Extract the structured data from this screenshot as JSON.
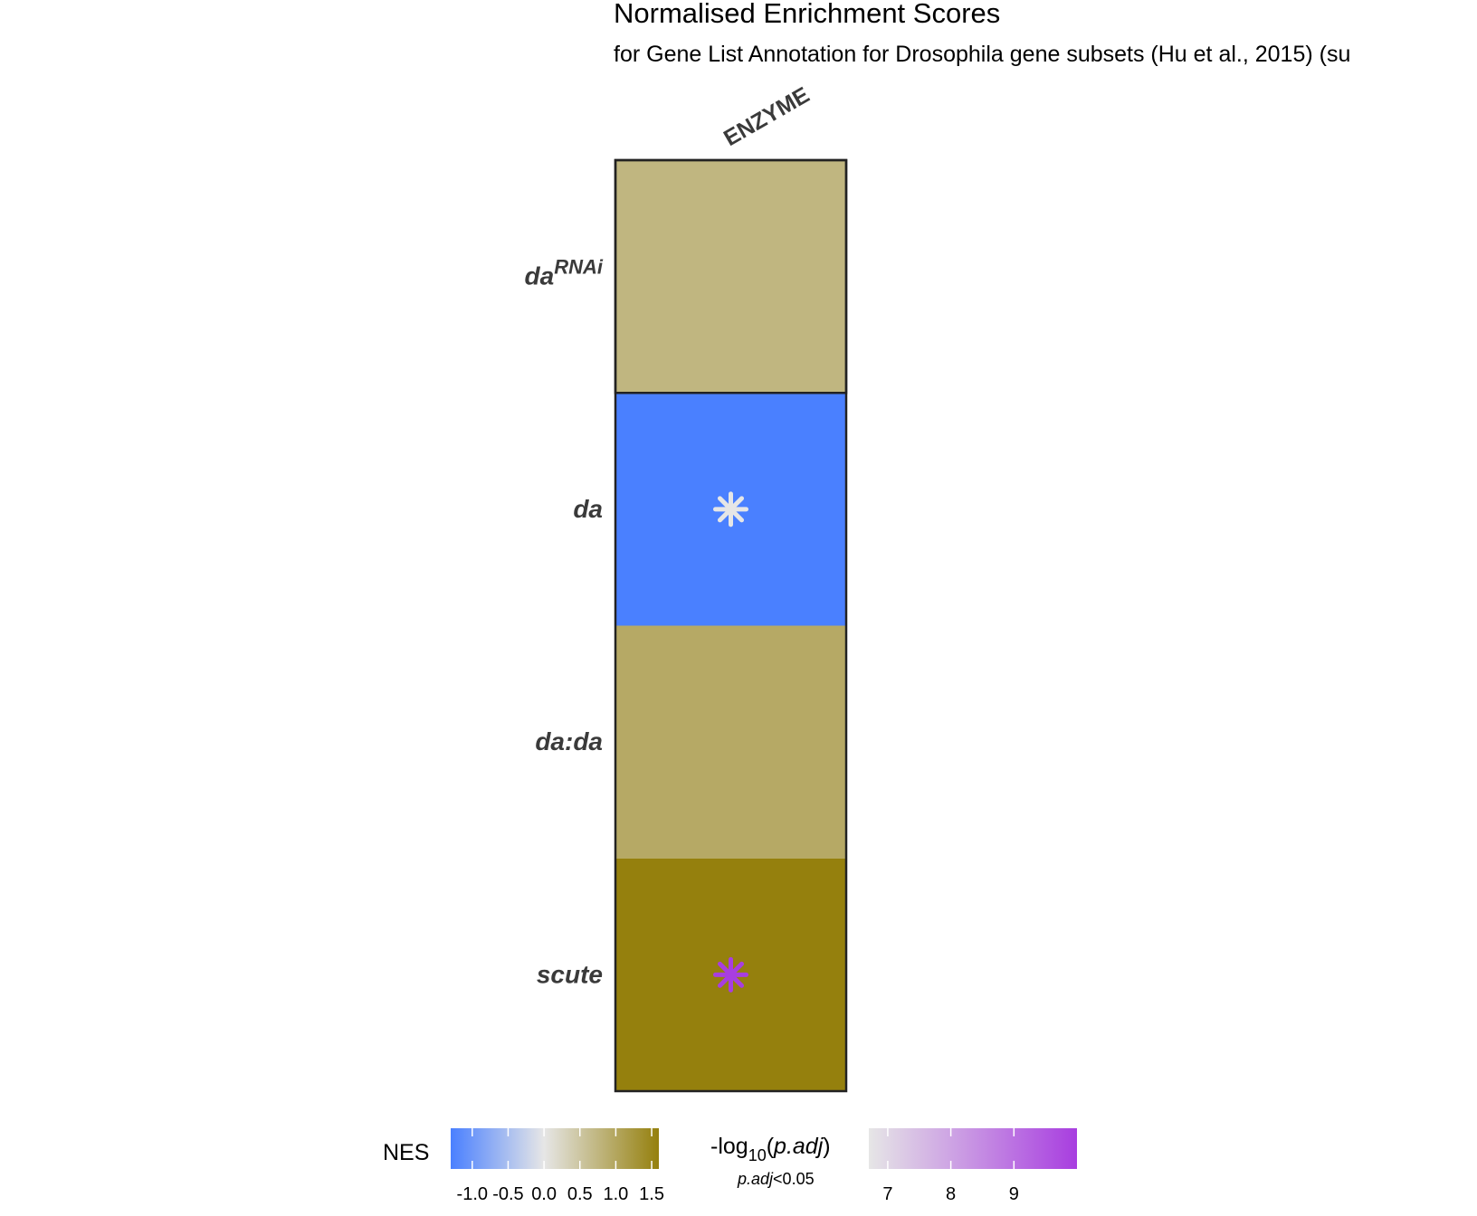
{
  "chart_data": {
    "type": "heatmap",
    "title": "Normalised Enrichment Scores",
    "subtitle": "for Gene List Annotation for Drosophila gene subsets (Hu et al., 2015) (su",
    "columns": [
      "ENZYME"
    ],
    "rows": [
      {
        "label_main": "da",
        "label_sup": "RNAi",
        "label_suffix": ""
      },
      {
        "label_main": "da",
        "label_sup": "",
        "label_suffix": ""
      },
      {
        "label_main": "da:da",
        "label_sup": "",
        "label_suffix": ""
      },
      {
        "label_main": "scute",
        "label_sup": "",
        "label_suffix": ""
      }
    ],
    "cells": [
      {
        "row": 0,
        "col": 0,
        "nes": 0.75,
        "significant": false,
        "neg_log10_padj": null
      },
      {
        "row": 1,
        "col": 0,
        "nes": -1.3,
        "significant": true,
        "neg_log10_padj": 6.7
      },
      {
        "row": 2,
        "col": 0,
        "nes": 0.95,
        "significant": false,
        "neg_log10_padj": null
      },
      {
        "row": 3,
        "col": 0,
        "nes": 1.6,
        "significant": true,
        "neg_log10_padj": 10.0
      }
    ],
    "nes_legend": {
      "title": "NES",
      "range": [
        -1.3,
        1.6
      ],
      "ticks": [
        -1.0,
        -0.5,
        0.0,
        0.5,
        1.0,
        1.5
      ],
      "tick_labels": [
        "-1.0",
        "-0.5",
        "0.0",
        "0.5",
        "1.0",
        "1.5"
      ],
      "colors": {
        "low": "#4a80ff",
        "mid": "#e6e6e6",
        "high": "#95800d"
      }
    },
    "padj_legend": {
      "title_prefix": "-log",
      "title_sub": "10",
      "title_open": "(",
      "title_italic": "p.adj",
      "title_close": ")",
      "subtitle_italic": "p.adj",
      "subtitle_rest": "<0.05",
      "range": [
        6.7,
        10.0
      ],
      "ticks": [
        7,
        8,
        9
      ],
      "tick_labels": [
        "7",
        "8",
        "9"
      ],
      "colors": {
        "low": "#e6e6e6",
        "high": "#a83ee0"
      }
    },
    "grid": false
  }
}
